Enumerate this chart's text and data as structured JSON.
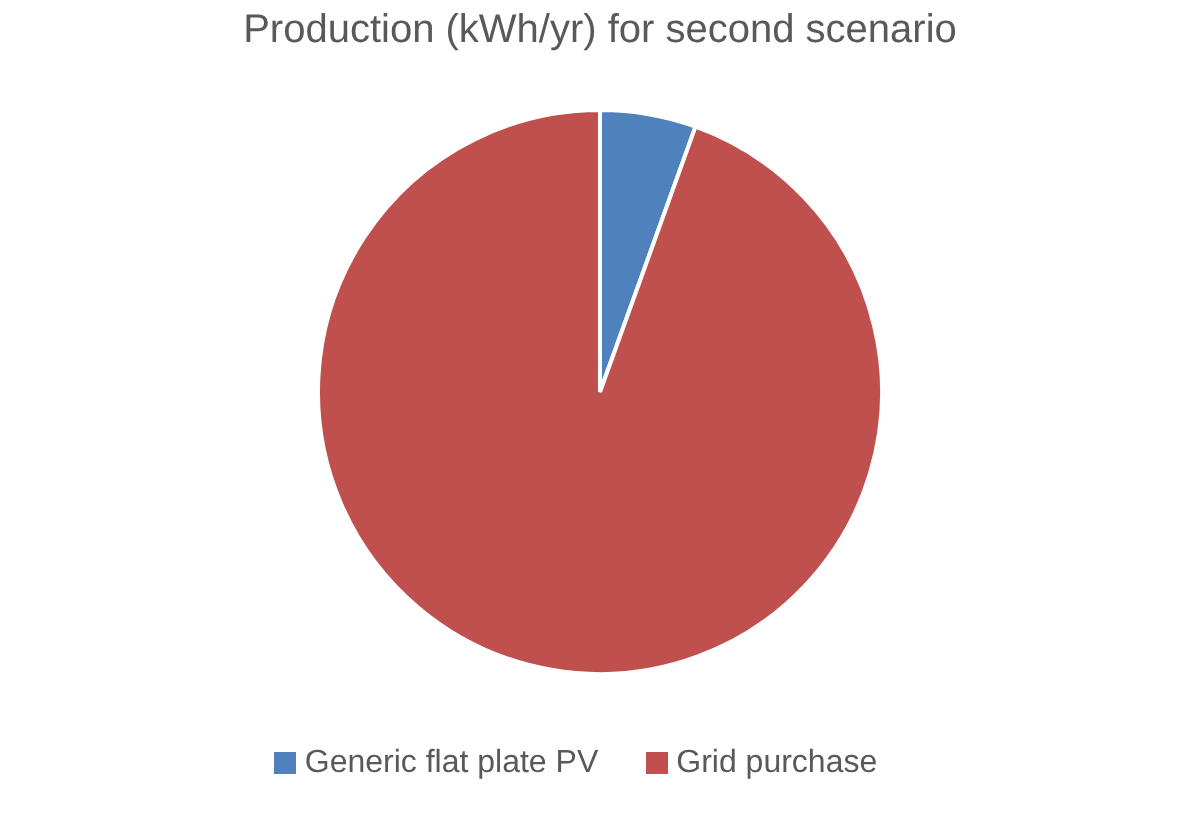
{
  "chart_data": {
    "type": "pie",
    "title": "Production (kWh/yr) for second scenario",
    "categories": [
      "Generic flat plate PV",
      "Grid purchase"
    ],
    "values": [
      5.5,
      94.5
    ],
    "colors": [
      "#4f81bd",
      "#c0504d"
    ],
    "legend": "bottom"
  }
}
